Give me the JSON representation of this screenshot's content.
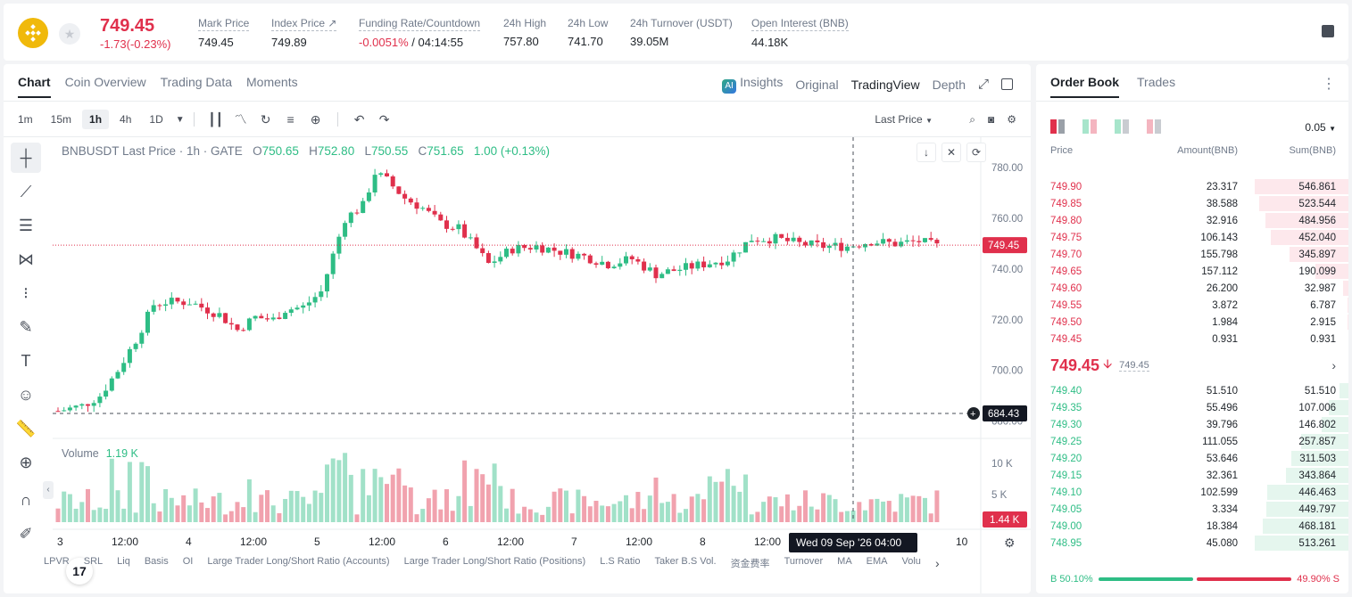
{
  "header": {
    "last_price": "749.45",
    "change": "-1.73(-0.23%)",
    "mark_price_label": "Mark Price",
    "mark_price": "749.45",
    "index_price_label": "Index Price ↗",
    "index_price": "749.89",
    "funding_label": "Funding Rate/Countdown",
    "funding_rate": "-0.0051%",
    "countdown": "/ 04:14:55",
    "high_label": "24h High",
    "high": "757.80",
    "low_label": "24h Low",
    "low": "741.70",
    "turnover_label": "24h Turnover (USDT)",
    "turnover": "39.05M",
    "oi_label": "Open Interest (BNB)",
    "oi": "44.18K"
  },
  "chart_tabs": [
    "Chart",
    "Coin Overview",
    "Trading Data",
    "Moments"
  ],
  "view_tabs": [
    "Insights",
    "Original",
    "TradingView",
    "Depth"
  ],
  "timeframes": [
    "1m",
    "15m",
    "1h",
    "4h",
    "1D"
  ],
  "price_source": "Last Price",
  "legend": {
    "symbol": "BNBUSDT Last Price · 1h · GATE",
    "o_label": "O",
    "o": "750.65",
    "h_label": "H",
    "h": "752.80",
    "l_label": "L",
    "l": "750.55",
    "c_label": "C",
    "c": "751.65",
    "chg": "1.00 (+0.13%)"
  },
  "volume_label": "Volume",
  "volume_value": "1.19 K",
  "price_axis": [
    "780.00",
    "760.00",
    "740.00",
    "720.00",
    "700.00",
    "680.00"
  ],
  "current_price_tag": "749.45",
  "crosshair_price": "684.43",
  "volume_axis": [
    "10 K",
    "5 K"
  ],
  "volume_tag": "1.44 K",
  "time_axis": [
    "3",
    "12:00",
    "4",
    "12:00",
    "5",
    "12:00",
    "6",
    "12:00",
    "7",
    "12:00",
    "8",
    "12:00",
    "10"
  ],
  "crosshair_time": "Wed 09 Sep '26   04:00",
  "indicators": [
    "LPVR",
    "SRL",
    "Liq",
    "Basis",
    "OI",
    "Large Trader Long/Short Ratio (Accounts)",
    "Large Trader Long/Short Ratio (Positions)",
    "L.S Ratio",
    "Taker B.S Vol.",
    "资金费率",
    "Turnover",
    "MA",
    "EMA",
    "Volu"
  ],
  "orderbook": {
    "tabs": [
      "Order Book",
      "Trades"
    ],
    "tick": "0.05",
    "headers": [
      "Price",
      "Amount(BNB)",
      "Sum(BNB)"
    ],
    "asks": [
      {
        "price": "749.90",
        "amount": "23.317",
        "sum": "546.861",
        "depth": 1.0
      },
      {
        "price": "749.85",
        "amount": "38.588",
        "sum": "523.544",
        "depth": 0.957
      },
      {
        "price": "749.80",
        "amount": "32.916",
        "sum": "484.956",
        "depth": 0.887
      },
      {
        "price": "749.75",
        "amount": "106.143",
        "sum": "452.040",
        "depth": 0.827
      },
      {
        "price": "749.70",
        "amount": "155.798",
        "sum": "345.897",
        "depth": 0.633
      },
      {
        "price": "749.65",
        "amount": "157.112",
        "sum": "190.099",
        "depth": 0.348
      },
      {
        "price": "749.60",
        "amount": "26.200",
        "sum": "32.987",
        "depth": 0.06
      },
      {
        "price": "749.55",
        "amount": "3.872",
        "sum": "6.787",
        "depth": 0.012
      },
      {
        "price": "749.50",
        "amount": "1.984",
        "sum": "2.915",
        "depth": 0.005
      },
      {
        "price": "749.45",
        "amount": "0.931",
        "sum": "0.931",
        "depth": 0.002
      }
    ],
    "mid_price": "749.45",
    "mid_arrow": "🡫",
    "mark_price": "749.45",
    "bids": [
      {
        "price": "749.40",
        "amount": "51.510",
        "sum": "51.510",
        "depth": 0.1
      },
      {
        "price": "749.35",
        "amount": "55.496",
        "sum": "107.006",
        "depth": 0.208
      },
      {
        "price": "749.30",
        "amount": "39.796",
        "sum": "146.802",
        "depth": 0.286
      },
      {
        "price": "749.25",
        "amount": "111.055",
        "sum": "257.857",
        "depth": 0.502
      },
      {
        "price": "749.20",
        "amount": "53.646",
        "sum": "311.503",
        "depth": 0.607
      },
      {
        "price": "749.15",
        "amount": "32.361",
        "sum": "343.864",
        "depth": 0.67
      },
      {
        "price": "749.10",
        "amount": "102.599",
        "sum": "446.463",
        "depth": 0.87
      },
      {
        "price": "749.05",
        "amount": "3.334",
        "sum": "449.797",
        "depth": 0.876
      },
      {
        "price": "749.00",
        "amount": "18.384",
        "sum": "468.181",
        "depth": 0.912
      },
      {
        "price": "748.95",
        "amount": "45.080",
        "sum": "513.261",
        "depth": 1.0
      }
    ],
    "buy_ratio": "B 50.10%",
    "sell_ratio": "49.90% S",
    "buy_fraction": 0.501
  },
  "colors": {
    "up": "#2ebd85",
    "down": "#e0304c",
    "brand": "#f0b90b"
  }
}
